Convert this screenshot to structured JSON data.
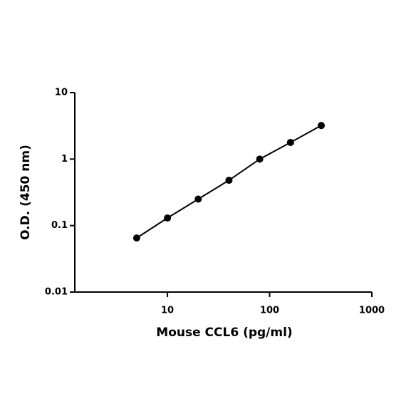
{
  "chart_data": {
    "type": "scatter",
    "xlabel": "Mouse CCL6 (pg/ml)",
    "ylabel": "O.D. (450 nm)",
    "x": [
      5,
      10,
      20,
      40,
      80,
      160,
      320
    ],
    "series": [
      {
        "color": "#000000",
        "values": [
          0.065,
          0.13,
          0.25,
          0.48,
          1.0,
          1.78,
          3.2
        ]
      }
    ],
    "xlim": [
      1.24,
      1000
    ],
    "ylim": [
      0.01,
      10
    ],
    "xticks": [
      10,
      100,
      1000
    ],
    "yticks": [
      0.01,
      0.1,
      1,
      10
    ],
    "xlog": true,
    "ylog": true,
    "line": true
  }
}
